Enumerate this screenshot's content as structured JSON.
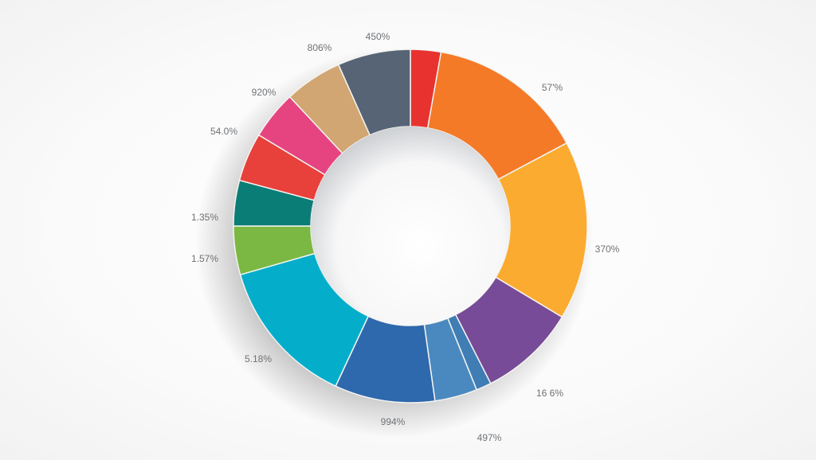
{
  "chart_data": {
    "type": "pie",
    "variant": "donut",
    "title": "",
    "center": [
      515,
      284
    ],
    "outer_radius": 222,
    "inner_radius": 125,
    "start_angle_deg": 0,
    "direction": "clockwise",
    "legend": "none",
    "slices": [
      {
        "label": "",
        "color": "#e8322f",
        "start": 0,
        "end": 10,
        "label_pos": null
      },
      {
        "label": "57'%",
        "color": "#f47a28",
        "start": 10,
        "end": 62,
        "label_pos": [
          693,
          110
        ]
      },
      {
        "label": "370%",
        "color": "#fbab30",
        "start": 62,
        "end": 121,
        "label_pos": [
          762,
          313
        ]
      },
      {
        "label": "16 6%",
        "color": "#774b97",
        "start": 121,
        "end": 153,
        "label_pos": [
          690,
          494
        ]
      },
      {
        "label": "497%",
        "color": "#3f7db4",
        "start": 153,
        "end": 158,
        "label_pos": [
          614,
          550
        ]
      },
      {
        "label": "",
        "color": "#4a89bf",
        "start": 158,
        "end": 172,
        "label_pos": null
      },
      {
        "label": "994%",
        "color": "#2e68ad",
        "start": 172,
        "end": 205,
        "label_pos": [
          493,
          530
        ]
      },
      {
        "label": "5.18%",
        "color": "#04aecb",
        "start": 205,
        "end": 254,
        "label_pos": [
          324,
          451
        ]
      },
      {
        "label": "1.57%",
        "color": "#7ab843",
        "start": 254,
        "end": 270,
        "label_pos": [
          257,
          325
        ]
      },
      {
        "label": "1.35%",
        "color": "#0a7d76",
        "start": 270,
        "end": 285,
        "label_pos": [
          257,
          273
        ]
      },
      {
        "label": "54.0%",
        "color": "#e8403b",
        "start": 285,
        "end": 301,
        "label_pos": [
          281,
          165
        ]
      },
      {
        "label": "920%",
        "color": "#e64480",
        "start": 301,
        "end": 317,
        "label_pos": [
          331,
          116
        ]
      },
      {
        "label": "806%",
        "color": "#d1a672",
        "start": 317,
        "end": 336,
        "label_pos": [
          401,
          60
        ]
      },
      {
        "label": "450%",
        "color": "#566476",
        "start": 336,
        "end": 360,
        "label_pos": [
          474,
          46
        ]
      }
    ],
    "visible_labels": [
      "450%",
      "806%",
      "920%",
      "54.0%",
      "1.35%",
      "1.57%",
      "5.18%",
      "994%",
      "497%",
      "16 6%",
      "370%",
      "57'%"
    ]
  }
}
